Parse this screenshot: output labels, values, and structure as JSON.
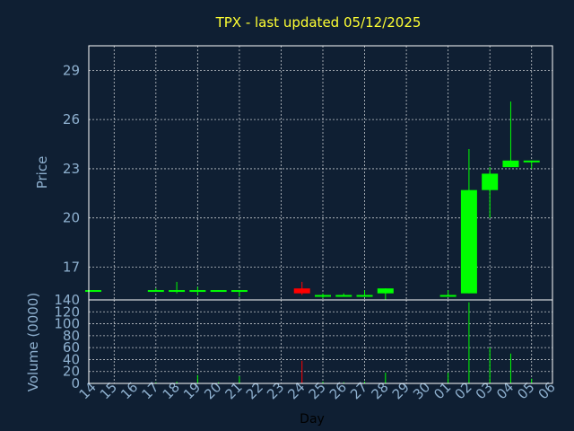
{
  "chart_data": {
    "type": "candlestick",
    "title": "TPX - last updated 05/12/2025",
    "price_panel": {
      "ylabel": "Price",
      "ylim": [
        15,
        30.5
      ],
      "yticks": [
        17,
        20,
        23,
        26,
        29
      ]
    },
    "volume_panel": {
      "ylabel": "Volume (0000)",
      "ylim": [
        0,
        140
      ],
      "yticks": [
        0,
        20,
        40,
        60,
        80,
        100,
        120,
        140
      ]
    },
    "xlabel": "Day",
    "categories": [
      "14",
      "15",
      "16",
      "17",
      "18",
      "19",
      "20",
      "21",
      "22",
      "23",
      "24",
      "25",
      "26",
      "27",
      "28",
      "29",
      "30",
      "01",
      "02",
      "03",
      "04",
      "05",
      "06"
    ],
    "candles": [
      {
        "day": "14",
        "open": 15.6,
        "high": 15.6,
        "low": 15.5,
        "close": 15.6,
        "volume": 1
      },
      {
        "day": "17",
        "open": 15.6,
        "high": 15.7,
        "low": 15.5,
        "close": 15.6,
        "volume": 2
      },
      {
        "day": "18",
        "open": 15.6,
        "high": 16.1,
        "low": 15.4,
        "close": 15.6,
        "volume": 3
      },
      {
        "day": "19",
        "open": 15.5,
        "high": 15.8,
        "low": 15.3,
        "close": 15.6,
        "volume": 14
      },
      {
        "day": "20",
        "open": 15.6,
        "high": 15.6,
        "low": 15.5,
        "close": 15.6,
        "volume": 2
      },
      {
        "day": "21",
        "open": 15.5,
        "high": 15.6,
        "low": 15.2,
        "close": 15.6,
        "volume": 12
      },
      {
        "day": "24",
        "open": 15.7,
        "high": 16.1,
        "low": 15.3,
        "close": 15.4,
        "volume": 38
      },
      {
        "day": "25",
        "open": 15.3,
        "high": 15.4,
        "low": 15.1,
        "close": 15.3,
        "volume": 3
      },
      {
        "day": "26",
        "open": 15.2,
        "high": 15.4,
        "low": 15.2,
        "close": 15.3,
        "volume": 2
      },
      {
        "day": "27",
        "open": 15.2,
        "high": 15.6,
        "low": 15.2,
        "close": 15.3,
        "volume": 3
      },
      {
        "day": "28",
        "open": 15.4,
        "high": 15.7,
        "low": 15.0,
        "close": 15.7,
        "volume": 18
      },
      {
        "day": "01",
        "open": 15.2,
        "high": 15.6,
        "low": 15.2,
        "close": 15.3,
        "volume": 18
      },
      {
        "day": "02",
        "open": 15.4,
        "high": 24.2,
        "low": 15.4,
        "close": 21.7,
        "volume": 136
      },
      {
        "day": "03",
        "open": 21.7,
        "high": 23.1,
        "low": 20.0,
        "close": 22.7,
        "volume": 60
      },
      {
        "day": "04",
        "open": 23.1,
        "high": 27.1,
        "low": 23.1,
        "close": 23.5,
        "volume": 50
      },
      {
        "day": "05",
        "open": 23.4,
        "high": 23.5,
        "low": 23.0,
        "close": 23.5,
        "volume": 8
      }
    ],
    "colors": {
      "background": "#0f1f33",
      "up": "#00ff00",
      "down": "#ff0000",
      "title": "#ffff33",
      "ticks": "#8eb0cf",
      "grid": "#ffffff"
    }
  }
}
